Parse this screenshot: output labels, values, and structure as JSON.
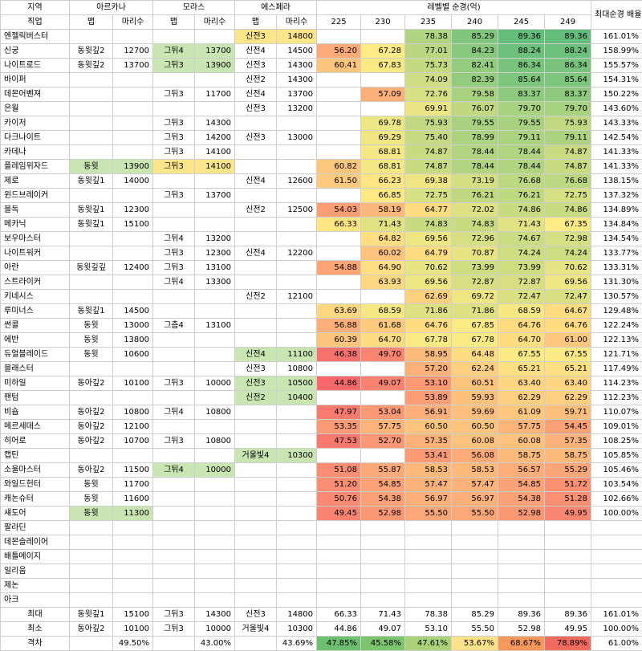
{
  "header": {
    "region": "지역",
    "arcana": "아르카나",
    "morass": "모라스",
    "esfera": "에스페라",
    "level_label": "레벨별 순경(억)",
    "max_ratio": "최대순경 배율",
    "job": "직업",
    "map": "맵",
    "count": "마리수",
    "levels": [
      "225",
      "230",
      "235",
      "240",
      "245",
      "249"
    ]
  },
  "rows": [
    {
      "job": "엔젤릭버스터",
      "a_map": "",
      "a_cnt": "",
      "m_map": "",
      "m_cnt": "",
      "e_map": "신전3",
      "e_cnt": "14800",
      "v": [
        "",
        "",
        "78.38",
        "85.29",
        "89.36",
        "89.36"
      ],
      "ratio": "161.01%",
      "a_c": "",
      "m_c": "",
      "e_c": "#fde68a"
    },
    {
      "job": "신궁",
      "a_map": "동윗깊2",
      "a_cnt": "12700",
      "m_map": "그뒤4",
      "m_cnt": "13700",
      "e_map": "신전4",
      "e_cnt": "14500",
      "v": [
        "56.20",
        "67.28",
        "77.01",
        "84.23",
        "88.24",
        "88.24"
      ],
      "ratio": "158.99%",
      "a_c": "",
      "m_c": "#c9e5b2",
      "e_c": ""
    },
    {
      "job": "나이트로드",
      "a_map": "동윗깊2",
      "a_cnt": "13700",
      "m_map": "그뒤3",
      "m_cnt": "13900",
      "e_map": "신전3",
      "e_cnt": "14300",
      "v": [
        "60.41",
        "67.83",
        "75.73",
        "82.41",
        "86.34",
        "86.34"
      ],
      "ratio": "155.57%",
      "a_c": "",
      "m_c": "#c9e5b2",
      "e_c": ""
    },
    {
      "job": "바이퍼",
      "a_map": "",
      "a_cnt": "",
      "m_map": "",
      "m_cnt": "",
      "e_map": "신전2",
      "e_cnt": "14300",
      "v": [
        "",
        "",
        "74.09",
        "82.39",
        "85.64",
        "85.64"
      ],
      "ratio": "154.31%",
      "a_c": "",
      "m_c": "",
      "e_c": ""
    },
    {
      "job": "데몬어벤져",
      "a_map": "",
      "a_cnt": "",
      "m_map": "그뒤3",
      "m_cnt": "11700",
      "e_map": "신전4",
      "e_cnt": "13700",
      "v": [
        "",
        "57.09",
        "72.76",
        "79.58",
        "83.37",
        "83.37"
      ],
      "ratio": "150.22%",
      "a_c": "",
      "m_c": "",
      "e_c": ""
    },
    {
      "job": "은월",
      "a_map": "",
      "a_cnt": "",
      "m_map": "",
      "m_cnt": "",
      "e_map": "신전3",
      "e_cnt": "13200",
      "v": [
        "",
        "",
        "69.91",
        "76.07",
        "79.70",
        "79.70"
      ],
      "ratio": "143.60%",
      "a_c": "",
      "m_c": "",
      "e_c": ""
    },
    {
      "job": "카이저",
      "a_map": "",
      "a_cnt": "",
      "m_map": "그뒤3",
      "m_cnt": "14300",
      "e_map": "",
      "e_cnt": "",
      "v": [
        "",
        "69.78",
        "75.93",
        "79.55",
        "79.55",
        "75.93"
      ],
      "ratio": "143.33%",
      "a_c": "",
      "m_c": "",
      "e_c": ""
    },
    {
      "job": "다크나이트",
      "a_map": "",
      "a_cnt": "",
      "m_map": "그뒤3",
      "m_cnt": "14200",
      "e_map": "신전3",
      "e_cnt": "13000",
      "v": [
        "",
        "69.29",
        "75.40",
        "78.99",
        "79.11",
        "79.11"
      ],
      "ratio": "142.54%",
      "a_c": "",
      "m_c": "",
      "e_c": ""
    },
    {
      "job": "카데나",
      "a_map": "",
      "a_cnt": "",
      "m_map": "그뒤3",
      "m_cnt": "14100",
      "e_map": "",
      "e_cnt": "",
      "v": [
        "",
        "68.81",
        "74.87",
        "78.44",
        "78.44",
        "74.87"
      ],
      "ratio": "141.33%",
      "a_c": "",
      "m_c": "",
      "e_c": ""
    },
    {
      "job": "플레임위자드",
      "a_map": "동윗",
      "a_cnt": "13900",
      "m_map": "그뒤3",
      "m_cnt": "14100",
      "e_map": "",
      "e_cnt": "",
      "v": [
        "60.82",
        "68.81",
        "74.87",
        "78.44",
        "78.44",
        "74.87"
      ],
      "ratio": "141.33%",
      "a_c": "#c9e5b2",
      "m_c": "#fde68a",
      "e_c": ""
    },
    {
      "job": "제로",
      "a_map": "동윗깊1",
      "a_cnt": "14000",
      "m_map": "",
      "m_cnt": "",
      "e_map": "신전4",
      "e_cnt": "12600",
      "v": [
        "61.50",
        "66.23",
        "69.38",
        "73.19",
        "76.68",
        "76.68"
      ],
      "ratio": "138.15%",
      "a_c": "",
      "m_c": "",
      "e_c": ""
    },
    {
      "job": "윈드브레이커",
      "a_map": "",
      "a_cnt": "",
      "m_map": "그뒤3",
      "m_cnt": "13700",
      "e_map": "",
      "e_cnt": "",
      "v": [
        "",
        "66.85",
        "72.75",
        "76.21",
        "76.21",
        "72.75"
      ],
      "ratio": "137.32%",
      "a_c": "",
      "m_c": "",
      "e_c": ""
    },
    {
      "job": "블독",
      "a_map": "동윗깊1",
      "a_cnt": "12300",
      "m_map": "",
      "m_cnt": "",
      "e_map": "신전2",
      "e_cnt": "12500",
      "v": [
        "54.03",
        "58.19",
        "64.77",
        "72.02",
        "74.86",
        "74.86"
      ],
      "ratio": "134.89%",
      "a_c": "",
      "m_c": "",
      "e_c": ""
    },
    {
      "job": "메카닉",
      "a_map": "동윗깊1",
      "a_cnt": "15100",
      "m_map": "",
      "m_cnt": "",
      "e_map": "",
      "e_cnt": "",
      "v": [
        "66.33",
        "71.43",
        "74.83",
        "74.83",
        "71.43",
        "67.35"
      ],
      "ratio": "134.84%",
      "a_c": "",
      "m_c": "",
      "e_c": ""
    },
    {
      "job": "보우마스터",
      "a_map": "",
      "a_cnt": "",
      "m_map": "그뒤4",
      "m_cnt": "13200",
      "e_map": "",
      "e_cnt": "",
      "v": [
        "",
        "64.82",
        "69.56",
        "72.96",
        "74.67",
        "72.98"
      ],
      "ratio": "134.54%",
      "a_c": "",
      "m_c": "",
      "e_c": ""
    },
    {
      "job": "나이트워커",
      "a_map": "",
      "a_cnt": "",
      "m_map": "그뒤3",
      "m_cnt": "12300",
      "e_map": "신전4",
      "e_cnt": "12200",
      "v": [
        "",
        "60.02",
        "64.79",
        "70.87",
        "74.24",
        "74.24"
      ],
      "ratio": "133.77%",
      "a_c": "",
      "m_c": "",
      "e_c": ""
    },
    {
      "job": "아란",
      "a_map": "동윗깊깊",
      "a_cnt": "12400",
      "m_map": "그뒤3",
      "m_cnt": "13100",
      "e_map": "",
      "e_cnt": "",
      "v": [
        "54.88",
        "64.90",
        "70.62",
        "73.99",
        "73.99",
        "70.62"
      ],
      "ratio": "133.31%",
      "a_c": "",
      "m_c": "",
      "e_c": ""
    },
    {
      "job": "스트라이커",
      "a_map": "",
      "a_cnt": "",
      "m_map": "그뒤4",
      "m_cnt": "13300",
      "e_map": "",
      "e_cnt": "",
      "v": [
        "",
        "63.93",
        "69.56",
        "72.87",
        "72.87",
        "69.56"
      ],
      "ratio": "131.30%",
      "a_c": "",
      "m_c": "",
      "e_c": ""
    },
    {
      "job": "키네시스",
      "a_map": "",
      "a_cnt": "",
      "m_map": "",
      "m_cnt": "",
      "e_map": "신전2",
      "e_cnt": "12100",
      "v": [
        "",
        "",
        "62.69",
        "69.72",
        "72.47",
        "72.47"
      ],
      "ratio": "130.57%",
      "a_c": "",
      "m_c": "",
      "e_c": ""
    },
    {
      "job": "루미너스",
      "a_map": "동윗깊1",
      "a_cnt": "14500",
      "m_map": "",
      "m_cnt": "",
      "e_map": "",
      "e_cnt": "",
      "v": [
        "63.69",
        "68.59",
        "71.86",
        "71.86",
        "68.59",
        "64.67"
      ],
      "ratio": "129.48%",
      "a_c": "",
      "m_c": "",
      "e_c": ""
    },
    {
      "job": "썬콜",
      "a_map": "동윗",
      "a_cnt": "13000",
      "m_map": "그츰4",
      "m_cnt": "13100",
      "e_map": "",
      "e_cnt": "",
      "v": [
        "56.88",
        "61.68",
        "64.76",
        "67.85",
        "64.76",
        "64.76"
      ],
      "ratio": "122.24%",
      "a_c": "",
      "m_c": "",
      "e_c": ""
    },
    {
      "job": "에반",
      "a_map": "동윗",
      "a_cnt": "13800",
      "m_map": "",
      "m_cnt": "",
      "e_map": "",
      "e_cnt": "",
      "v": [
        "60.39",
        "64.70",
        "67.78",
        "67.78",
        "64.70",
        "61.00"
      ],
      "ratio": "122.13%",
      "a_c": "",
      "m_c": "",
      "e_c": ""
    },
    {
      "job": "듀얼블레이드",
      "a_map": "동윗",
      "a_cnt": "10600",
      "m_map": "",
      "m_cnt": "",
      "e_map": "신전4",
      "e_cnt": "11100",
      "v": [
        "46.38",
        "49.70",
        "58.95",
        "64.48",
        "67.55",
        "67.55"
      ],
      "ratio": "121.71%",
      "a_c": "",
      "m_c": "",
      "e_c": "#c9e5b2"
    },
    {
      "job": "블래스터",
      "a_map": "",
      "a_cnt": "",
      "m_map": "",
      "m_cnt": "",
      "e_map": "신전3",
      "e_cnt": "10800",
      "v": [
        "",
        "",
        "57.20",
        "62.24",
        "65.21",
        "65.21"
      ],
      "ratio": "117.49%",
      "a_c": "",
      "m_c": "",
      "e_c": ""
    },
    {
      "job": "미하일",
      "a_map": "동아깊2",
      "a_cnt": "10100",
      "m_map": "그뒤3",
      "m_cnt": "10000",
      "e_map": "신전3",
      "e_cnt": "10500",
      "v": [
        "44.86",
        "49.07",
        "53.10",
        "60.51",
        "63.40",
        "63.40"
      ],
      "ratio": "114.23%",
      "a_c": "",
      "m_c": "",
      "e_c": "#c9e5b2"
    },
    {
      "job": "팬텀",
      "a_map": "",
      "a_cnt": "",
      "m_map": "",
      "m_cnt": "",
      "e_map": "신전2",
      "e_cnt": "10400",
      "v": [
        "",
        "",
        "53.89",
        "59.93",
        "62.29",
        "62.29"
      ],
      "ratio": "112.23%",
      "a_c": "",
      "m_c": "",
      "e_c": "#c9e5b2"
    },
    {
      "job": "비숍",
      "a_map": "동아깊2",
      "a_cnt": "10800",
      "m_map": "그뒤4",
      "m_cnt": "10800",
      "e_map": "",
      "e_cnt": "",
      "v": [
        "47.97",
        "53.04",
        "56.91",
        "59.69",
        "61.09",
        "59.71"
      ],
      "ratio": "110.07%",
      "a_c": "",
      "m_c": "",
      "e_c": ""
    },
    {
      "job": "메르세데스",
      "a_map": "동아깊2",
      "a_cnt": "12100",
      "m_map": "",
      "m_cnt": "",
      "e_map": "",
      "e_cnt": "",
      "v": [
        "53.35",
        "57.75",
        "60.50",
        "60.50",
        "57.75",
        "54.45"
      ],
      "ratio": "109.01%",
      "a_c": "",
      "m_c": "",
      "e_c": ""
    },
    {
      "job": "히어로",
      "a_map": "동아깊2",
      "a_cnt": "10700",
      "m_map": "그뒤3",
      "m_cnt": "10800",
      "e_map": "",
      "e_cnt": "",
      "v": [
        "47.53",
        "52.70",
        "57.35",
        "60.08",
        "60.08",
        "57.35"
      ],
      "ratio": "108.25%",
      "a_c": "",
      "m_c": "",
      "e_c": ""
    },
    {
      "job": "캡틴",
      "a_map": "",
      "a_cnt": "",
      "m_map": "",
      "m_cnt": "",
      "e_map": "거울빛4",
      "e_cnt": "10300",
      "v": [
        "",
        "",
        "53.41",
        "56.08",
        "58.75",
        "58.75"
      ],
      "ratio": "105.85%",
      "a_c": "",
      "m_c": "",
      "e_c": "#c9e5b2"
    },
    {
      "job": "소울마스터",
      "a_map": "동아깊2",
      "a_cnt": "11500",
      "m_map": "그뒤4",
      "m_cnt": "10000",
      "e_map": "",
      "e_cnt": "",
      "v": [
        "51.08",
        "55.87",
        "58.53",
        "58.53",
        "56.57",
        "55.29"
      ],
      "ratio": "105.46%",
      "a_c": "",
      "m_c": "#c9e5b2",
      "e_c": ""
    },
    {
      "job": "와일드헌터",
      "a_map": "동윗",
      "a_cnt": "11700",
      "m_map": "",
      "m_cnt": "",
      "e_map": "",
      "e_cnt": "",
      "v": [
        "51.20",
        "54.85",
        "57.47",
        "57.47",
        "54.85",
        "51.72"
      ],
      "ratio": "103.54%",
      "a_c": "",
      "m_c": "",
      "e_c": ""
    },
    {
      "job": "캐논슈터",
      "a_map": "동윗",
      "a_cnt": "11600",
      "m_map": "",
      "m_cnt": "",
      "e_map": "",
      "e_cnt": "",
      "v": [
        "50.76",
        "54.38",
        "56.97",
        "56.97",
        "54.38",
        "51.28"
      ],
      "ratio": "102.66%",
      "a_c": "",
      "m_c": "",
      "e_c": ""
    },
    {
      "job": "섀도어",
      "a_map": "동윗",
      "a_cnt": "11300",
      "m_map": "",
      "m_cnt": "",
      "e_map": "",
      "e_cnt": "",
      "v": [
        "49.45",
        "52.98",
        "55.50",
        "55.50",
        "52.98",
        "49.95"
      ],
      "ratio": "100.00%",
      "a_c": "#c9e5b2",
      "e_c": "",
      "m_c": ""
    },
    {
      "job": "팔라딘",
      "a_map": "",
      "a_cnt": "",
      "m_map": "",
      "m_cnt": "",
      "e_map": "",
      "e_cnt": "",
      "v": [
        "",
        "",
        "",
        "",
        "",
        ""
      ],
      "ratio": "",
      "a_c": "",
      "m_c": "",
      "e_c": ""
    },
    {
      "job": "데몬슬레이어",
      "a_map": "",
      "a_cnt": "",
      "m_map": "",
      "m_cnt": "",
      "e_map": "",
      "e_cnt": "",
      "v": [
        "",
        "",
        "",
        "",
        "",
        ""
      ],
      "ratio": "",
      "a_c": "",
      "m_c": "",
      "e_c": ""
    },
    {
      "job": "배틀메이지",
      "a_map": "",
      "a_cnt": "",
      "m_map": "",
      "m_cnt": "",
      "e_map": "",
      "e_cnt": "",
      "v": [
        "",
        "",
        "",
        "",
        "",
        ""
      ],
      "ratio": "",
      "a_c": "",
      "m_c": "",
      "e_c": ""
    },
    {
      "job": "일리움",
      "a_map": "",
      "a_cnt": "",
      "m_map": "",
      "m_cnt": "",
      "e_map": "",
      "e_cnt": "",
      "v": [
        "",
        "",
        "",
        "",
        "",
        ""
      ],
      "ratio": "",
      "a_c": "",
      "m_c": "",
      "e_c": ""
    },
    {
      "job": "제논",
      "a_map": "",
      "a_cnt": "",
      "m_map": "",
      "m_cnt": "",
      "e_map": "",
      "e_cnt": "",
      "v": [
        "",
        "",
        "",
        "",
        "",
        ""
      ],
      "ratio": "",
      "a_c": "",
      "m_c": "",
      "e_c": ""
    },
    {
      "job": "아크",
      "a_map": "",
      "a_cnt": "",
      "m_map": "",
      "m_cnt": "",
      "e_map": "",
      "e_cnt": "",
      "v": [
        "",
        "",
        "",
        "",
        "",
        ""
      ],
      "ratio": "",
      "a_c": "",
      "m_c": "",
      "e_c": ""
    }
  ],
  "summary": [
    {
      "job": "최대",
      "a_map": "동윗깊1",
      "a_cnt": "15100",
      "m_map": "그뒤3",
      "m_cnt": "14300",
      "e_map": "신전3",
      "e_cnt": "14800",
      "v": [
        "66.33",
        "71.43",
        "78.38",
        "85.29",
        "89.36",
        "89.36"
      ],
      "ratio": "161.01%"
    },
    {
      "job": "최소",
      "a_map": "동아깊2",
      "a_cnt": "10100",
      "m_map": "그뒤3",
      "m_cnt": "10000",
      "e_map": "거울빛4",
      "e_cnt": "10300",
      "v": [
        "44.86",
        "49.07",
        "53.10",
        "55.50",
        "52.98",
        "49.95"
      ],
      "ratio": "100.00%"
    },
    {
      "job": "격차",
      "a_map": "",
      "a_cnt": "49.50%",
      "m_map": "",
      "m_cnt": "43.00%",
      "e_map": "",
      "e_cnt": "43.69%",
      "v": [
        "47.85%",
        "45.58%",
        "47.61%",
        "53.67%",
        "68.67%",
        "78.89%"
      ],
      "ratio": "61.00%"
    }
  ],
  "gap_colors": [
    "#6cc070",
    "#7cc46e",
    "#a9d279",
    "#fde28a",
    "#f8985a",
    "#f26b5e"
  ],
  "scale": {
    "low": "#f8696b",
    "mid": "#ffeb84",
    "high": "#63be7b"
  }
}
